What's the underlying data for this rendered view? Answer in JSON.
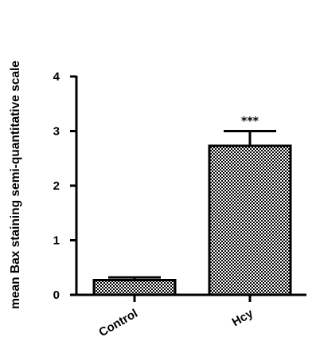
{
  "chart_data": {
    "type": "bar",
    "title": "",
    "xlabel": "",
    "ylabel": "mean Bax staining semi-quantitative scale",
    "categories": [
      "Control",
      "Hcy"
    ],
    "values": [
      0.27,
      2.73
    ],
    "error_plus": [
      0.05,
      0.27
    ],
    "annotations": [
      "",
      "***"
    ],
    "ylim": [
      0,
      4
    ],
    "yticks": [
      0,
      1,
      2,
      3,
      4
    ],
    "grid": false,
    "legend": "none",
    "bar_fill": "dotted pattern",
    "colors": {
      "bar_outline": "#000000",
      "bar_pattern": "#000000",
      "background": "#ffffff"
    }
  }
}
